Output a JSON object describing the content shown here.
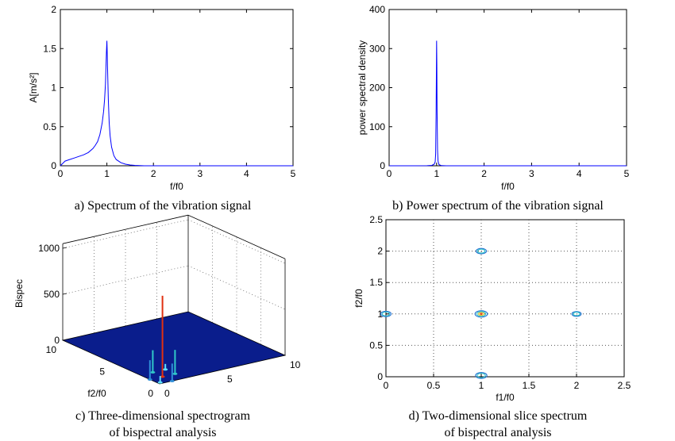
{
  "chart_data": [
    {
      "id": "a",
      "type": "line",
      "xlabel": "f/f0",
      "ylabel": "A[m/s²]",
      "xlim": [
        0,
        5
      ],
      "ylim": [
        0,
        2
      ],
      "xticks": [
        "0",
        "1",
        "2",
        "3",
        "4",
        "5"
      ],
      "yticks": [
        "0",
        "0.5",
        "1",
        "1.5",
        "2"
      ],
      "line_color": "#0000ff",
      "series": [
        {
          "x": [
            0,
            0.1,
            0.2,
            0.3,
            0.4,
            0.5,
            0.6,
            0.7,
            0.75,
            0.8,
            0.85,
            0.9,
            0.93,
            0.95,
            0.97,
            0.98,
            0.99,
            1.0,
            1.005,
            1.01,
            1.02,
            1.03,
            1.05,
            1.07,
            1.1,
            1.15,
            1.2,
            1.3,
            1.4,
            1.5,
            1.6,
            1.8,
            2,
            3,
            4,
            5
          ],
          "y": [
            0,
            0.06,
            0.08,
            0.1,
            0.12,
            0.14,
            0.17,
            0.22,
            0.26,
            0.31,
            0.4,
            0.55,
            0.7,
            0.85,
            1.05,
            1.25,
            1.45,
            1.6,
            1.5,
            1.35,
            1.1,
            0.85,
            0.55,
            0.38,
            0.24,
            0.13,
            0.08,
            0.04,
            0.02,
            0.01,
            0.005,
            0,
            0,
            0,
            0,
            0
          ]
        }
      ]
    },
    {
      "id": "b",
      "type": "line",
      "xlabel": "f/f0",
      "ylabel": "power spectral density",
      "xlim": [
        0,
        5
      ],
      "ylim": [
        0,
        400
      ],
      "xticks": [
        "0",
        "1",
        "2",
        "3",
        "4",
        "5"
      ],
      "yticks": [
        "0",
        "100",
        "200",
        "300",
        "400"
      ],
      "line_color": "#0000ff",
      "series": [
        {
          "x": [
            0,
            0.5,
            0.8,
            0.9,
            0.95,
            0.97,
            0.98,
            0.99,
            1.0,
            1.005,
            1.01,
            1.02,
            1.03,
            1.05,
            1.1,
            1.2,
            1.5,
            2,
            3,
            4,
            5
          ],
          "y": [
            0,
            0,
            0.3,
            1,
            4,
            10,
            30,
            140,
            320,
            260,
            140,
            40,
            12,
            3,
            0.5,
            0,
            0,
            0,
            0,
            0,
            0
          ]
        }
      ]
    },
    {
      "id": "c",
      "type": "surface3d",
      "zlabel": "Bispec",
      "ylabel_3d": "f2/f0",
      "zticks": [
        "0",
        "500",
        "1000"
      ],
      "f1_ticks": [
        "0",
        "5",
        "10"
      ],
      "f2_ticks": [
        "0",
        "5",
        "10"
      ],
      "zlim": [
        0,
        1000
      ],
      "surface_color": "#0a1d8c",
      "peaks": [
        {
          "f1": 1,
          "f2": 1,
          "z": 880,
          "color": "#e03010"
        },
        {
          "f1": 2,
          "f2": 1,
          "z": 260,
          "color": "#30c8c8"
        },
        {
          "f1": 1,
          "f2": 2,
          "z": 240,
          "color": "#30c8c8"
        },
        {
          "f1": 1,
          "f2": 0,
          "z": 190,
          "color": "#2f8fd8"
        },
        {
          "f1": 0,
          "f2": 1,
          "z": 210,
          "color": "#2f8fd8"
        },
        {
          "f1": 0.2,
          "f2": 0.2,
          "z": 70,
          "color": "#5fe0ff"
        },
        {
          "f1": 2,
          "f2": 2,
          "z": 60,
          "color": "#5fe0ff"
        }
      ]
    },
    {
      "id": "d",
      "type": "contour",
      "xlabel": "f1/f0",
      "ylabel": "f2/f0",
      "xlim": [
        0,
        2.5
      ],
      "ylim": [
        0,
        2.5
      ],
      "xticks": [
        "0",
        "0.5",
        "1",
        "1.5",
        "2",
        "2.5"
      ],
      "yticks": [
        "0",
        "0.5",
        "1",
        "1.5",
        "2",
        "2.5"
      ],
      "grid": true,
      "blobs": [
        {
          "x": 1.0,
          "y": 2.0,
          "size": 1.0,
          "level": 1
        },
        {
          "x": 1.0,
          "y": 1.0,
          "size": 1.2,
          "level": 3
        },
        {
          "x": 0.0,
          "y": 1.0,
          "size": 1.0,
          "level": 1
        },
        {
          "x": 2.0,
          "y": 1.0,
          "size": 0.9,
          "level": 1
        },
        {
          "x": 1.0,
          "y": 0.02,
          "size": 1.1,
          "level": 1
        }
      ]
    }
  ],
  "captions": {
    "a": "a) Spectrum of the vibration signal",
    "b": "b) Power spectrum of the vibration signal",
    "c_line1": "c) Three-dimensional spectrogram",
    "c_line2": "of bispectral analysis",
    "d_line1": "d) Two-dimensional slice spectrum",
    "d_line2": "of bispectral analysis"
  }
}
